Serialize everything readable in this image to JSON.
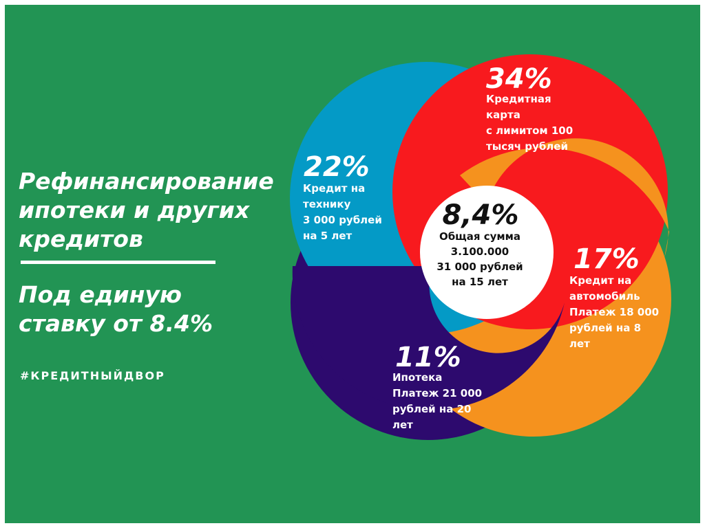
{
  "headline": {
    "line1": "Рефинансирование",
    "line2": "ипотеки и других",
    "line3": "кредитов"
  },
  "subheadline": {
    "line1": "Под единую",
    "line2": "ставку от 8.4%"
  },
  "hashtag": "#КРЕДИТНЫЙДВОР",
  "colors": {
    "background": "#229454",
    "tech": "#049AC6",
    "credit_card": "#F81A1E",
    "auto": "#F5921E",
    "mortgage": "#2D0A6E",
    "center": "#FFFFFF"
  },
  "segments": {
    "credit_card": {
      "percent": "34%",
      "lines": [
        "Кредитная",
        "карта",
        "с лимитом 100",
        "тысяч рублей"
      ]
    },
    "tech": {
      "percent": "22%",
      "lines": [
        "Кредит на",
        "технику",
        "3 000 рублей",
        "на 5 лет"
      ]
    },
    "auto": {
      "percent": "17%",
      "lines": [
        "Кредит на",
        "автомобиль",
        "Платеж 18 000",
        "рублей на 8",
        "лет"
      ]
    },
    "mortgage": {
      "percent": "11%",
      "lines": [
        "Ипотека",
        "Платеж 21 000",
        "рублей на 20",
        "лет"
      ]
    }
  },
  "center": {
    "percent": "8,4%",
    "lines": [
      "Общая сумма",
      "3.100.000",
      "31 000 рублей",
      "на 15 лет"
    ]
  }
}
